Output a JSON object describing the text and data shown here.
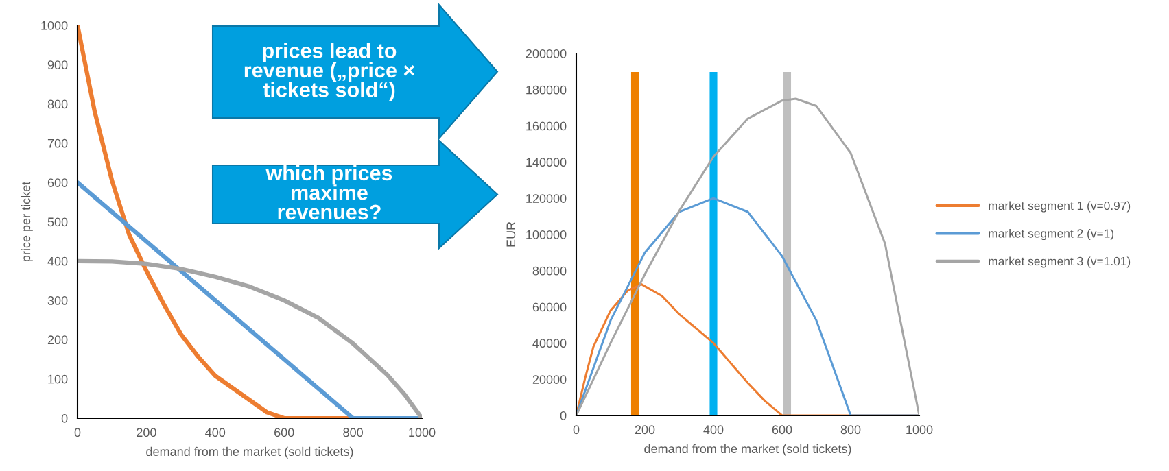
{
  "chart_data": [
    {
      "type": "line",
      "xlabel": "demand from the market (sold tickets)",
      "ylabel": "price per ticket",
      "xlim": [
        0,
        1000
      ],
      "ylim": [
        0,
        1000
      ],
      "xticks": [
        0,
        200,
        400,
        600,
        800,
        1000
      ],
      "yticks": [
        0,
        100,
        200,
        300,
        400,
        500,
        600,
        700,
        800,
        900,
        1000
      ],
      "grid": false,
      "legend": false,
      "series": [
        {
          "color": "#ed7d31",
          "x": [
            0,
            50,
            100,
            150,
            200,
            250,
            300,
            350,
            400,
            450,
            500,
            550,
            600,
            800,
            1000
          ],
          "values": [
            1000,
            780,
            605,
            467,
            375,
            291,
            214,
            157,
            108,
            77,
            46,
            15,
            0,
            0,
            0
          ]
        },
        {
          "color": "#5b9bd5",
          "x": [
            0,
            800,
            1000
          ],
          "values": [
            600,
            0,
            0
          ]
        },
        {
          "color": "#a5a5a5",
          "x": [
            0,
            100,
            200,
            300,
            400,
            500,
            600,
            700,
            800,
            900,
            950,
            1000
          ],
          "values": [
            400,
            399,
            393,
            380,
            360,
            335,
            300,
            255,
            190,
            110,
            60,
            0
          ]
        }
      ]
    },
    {
      "type": "line",
      "xlabel": "demand from the market (sold tickets)",
      "ylabel": "EUR",
      "xlim": [
        0,
        1000
      ],
      "ylim": [
        0,
        200000
      ],
      "xticks": [
        0,
        200,
        400,
        600,
        800,
        1000
      ],
      "yticks": [
        0,
        20000,
        40000,
        60000,
        80000,
        100000,
        120000,
        140000,
        160000,
        180000,
        200000
      ],
      "grid": false,
      "legend": "right",
      "annotations": [
        "prices lead to revenue („price × tickets sold“)",
        "which prices maxime revenues?"
      ],
      "series": [
        {
          "type": "bar",
          "x": [
            171,
            400,
            615
          ],
          "colors": [
            "#ee7f00",
            "#00b0f0",
            "#bfbfbf"
          ],
          "values": [
            190000,
            190000,
            190000
          ]
        },
        {
          "name": "market segment 1 (v=0.97)",
          "color": "#ed7d31",
          "x": [
            0,
            25,
            50,
            100,
            150,
            190,
            250,
            300,
            350,
            400,
            450,
            500,
            550,
            600,
            800,
            1000
          ],
          "values": [
            0,
            20000,
            38000,
            58000,
            69000,
            72500,
            66000,
            56000,
            48000,
            40000,
            29000,
            18000,
            8000,
            0,
            0,
            0
          ]
        },
        {
          "name": "market segment 2 (v=1)",
          "color": "#5b9bd5",
          "x": [
            0,
            100,
            200,
            300,
            400,
            500,
            600,
            700,
            800,
            1000
          ],
          "values": [
            0,
            52500,
            90000,
            112500,
            120000,
            112500,
            88000,
            52500,
            0,
            0
          ]
        },
        {
          "name": "market segment 3 (v=1.01)",
          "color": "#a5a5a5",
          "x": [
            0,
            100,
            200,
            300,
            400,
            500,
            600,
            640,
            700,
            800,
            900,
            1000
          ],
          "values": [
            0,
            40000,
            78000,
            113000,
            143000,
            164000,
            174000,
            175000,
            171000,
            145000,
            95000,
            0
          ]
        }
      ]
    }
  ]
}
